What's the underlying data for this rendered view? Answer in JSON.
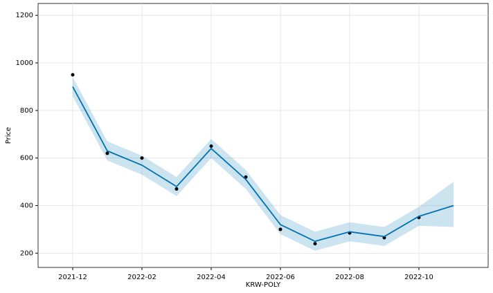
{
  "chart_data": {
    "type": "forecast",
    "xlabel": "KRW-POLY",
    "ylabel": "Price",
    "x": [
      "2021-12",
      "2022-01",
      "2022-02",
      "2022-03",
      "2022-04",
      "2022-05",
      "2022-06",
      "2022-07",
      "2022-08",
      "2022-09",
      "2022-10",
      "2022-11"
    ],
    "series": [
      {
        "name": "observed",
        "color": "#000000",
        "values": [
          950,
          620,
          600,
          470,
          650,
          520,
          300,
          240,
          285,
          265,
          350,
          null
        ]
      },
      {
        "name": "yhat",
        "color": "#0072B2",
        "values": [
          900,
          630,
          570,
          480,
          640,
          510,
          320,
          250,
          290,
          270,
          355,
          400
        ]
      },
      {
        "name": "yhat_lower",
        "color": "#0072B2",
        "values": [
          860,
          590,
          530,
          440,
          600,
          470,
          280,
          210,
          250,
          230,
          315,
          310
        ]
      },
      {
        "name": "yhat_upper",
        "color": "#0072B2",
        "values": [
          940,
          670,
          610,
          520,
          680,
          550,
          360,
          290,
          330,
          310,
          395,
          500
        ]
      }
    ],
    "xlim": [
      "2021-11",
      "2022-12"
    ],
    "xticks": [
      "2021-12",
      "2022-02",
      "2022-04",
      "2022-06",
      "2022-08",
      "2022-10"
    ],
    "ylim": [
      140,
      1250
    ],
    "yticks": [
      200,
      400,
      600,
      800,
      1000,
      1200
    ],
    "grid": true
  }
}
